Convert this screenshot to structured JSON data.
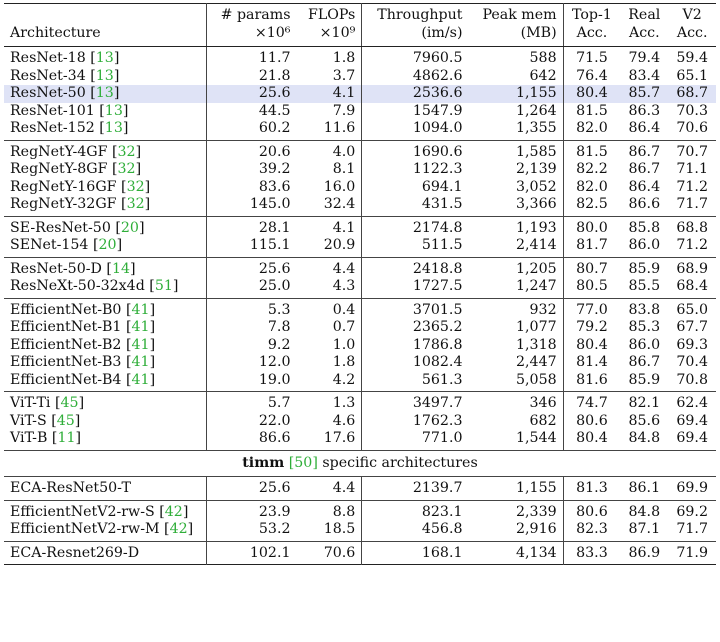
{
  "header": {
    "architecture": "Architecture",
    "params_l1": "# params",
    "params_l2": "×10⁶",
    "flops_l1": "FLOPs",
    "flops_l2": "×10⁹",
    "throughput_l1": "Throughput",
    "throughput_l2": "(im/s)",
    "peakmem_l1": "Peak mem",
    "peakmem_l2": "(MB)",
    "top1_l1": "Top-1",
    "top1_l2": "Acc.",
    "real_l1": "Real",
    "real_l2": "Acc.",
    "v2_l1": "V2",
    "v2_l2": "Acc."
  },
  "caption_row": {
    "bold": "timm",
    "ref": "[50]",
    "rest": " specific architectures"
  },
  "groups": [
    {
      "rows": [
        {
          "name": "ResNet-18",
          "ref": "13",
          "params": "11.7",
          "flops": "1.8",
          "throughput": "7960.5",
          "mem": "588",
          "top1": "71.5",
          "real": "79.4",
          "v2": "59.4"
        },
        {
          "name": "ResNet-34",
          "ref": "13",
          "params": "21.8",
          "flops": "3.7",
          "throughput": "4862.6",
          "mem": "642",
          "top1": "76.4",
          "real": "83.4",
          "v2": "65.1"
        },
        {
          "name": "ResNet-50",
          "ref": "13",
          "params": "25.6",
          "flops": "4.1",
          "throughput": "2536.6",
          "mem": "1,155",
          "top1": "80.4",
          "real": "85.7",
          "v2": "68.7",
          "highlight": true
        },
        {
          "name": "ResNet-101",
          "ref": "13",
          "params": "44.5",
          "flops": "7.9",
          "throughput": "1547.9",
          "mem": "1,264",
          "top1": "81.5",
          "real": "86.3",
          "v2": "70.3"
        },
        {
          "name": "ResNet-152",
          "ref": "13",
          "params": "60.2",
          "flops": "11.6",
          "throughput": "1094.0",
          "mem": "1,355",
          "top1": "82.0",
          "real": "86.4",
          "v2": "70.6"
        }
      ]
    },
    {
      "rows": [
        {
          "name": "RegNetY-4GF",
          "ref": "32",
          "params": "20.6",
          "flops": "4.0",
          "throughput": "1690.6",
          "mem": "1,585",
          "top1": "81.5",
          "real": "86.7",
          "v2": "70.7"
        },
        {
          "name": "RegNetY-8GF",
          "ref": "32",
          "params": "39.2",
          "flops": "8.1",
          "throughput": "1122.3",
          "mem": "2,139",
          "top1": "82.2",
          "real": "86.7",
          "v2": "71.1"
        },
        {
          "name": "RegNetY-16GF",
          "ref": "32",
          "params": "83.6",
          "flops": "16.0",
          "throughput": "694.1",
          "mem": "3,052",
          "top1": "82.0",
          "real": "86.4",
          "v2": "71.2"
        },
        {
          "name": "RegNetY-32GF",
          "ref": "32",
          "params": "145.0",
          "flops": "32.4",
          "throughput": "431.5",
          "mem": "3,366",
          "top1": "82.5",
          "real": "86.6",
          "v2": "71.7"
        }
      ]
    },
    {
      "rows": [
        {
          "name": "SE-ResNet-50",
          "ref": "20",
          "params": "28.1",
          "flops": "4.1",
          "throughput": "2174.8",
          "mem": "1,193",
          "top1": "80.0",
          "real": "85.8",
          "v2": "68.8"
        },
        {
          "name": "SENet-154",
          "ref": "20",
          "params": "115.1",
          "flops": "20.9",
          "throughput": "511.5",
          "mem": "2,414",
          "top1": "81.7",
          "real": "86.0",
          "v2": "71.2"
        }
      ]
    },
    {
      "rows": [
        {
          "name": "ResNet-50-D",
          "ref": "14",
          "params": "25.6",
          "flops": "4.4",
          "throughput": "2418.8",
          "mem": "1,205",
          "top1": "80.7",
          "real": "85.9",
          "v2": "68.9"
        },
        {
          "name": "ResNeXt-50-32x4d",
          "ref": "51",
          "params": "25.0",
          "flops": "4.3",
          "throughput": "1727.5",
          "mem": "1,247",
          "top1": "80.5",
          "real": "85.5",
          "v2": "68.4"
        }
      ]
    },
    {
      "rows": [
        {
          "name": "EfficientNet-B0",
          "ref": "41",
          "params": "5.3",
          "flops": "0.4",
          "throughput": "3701.5",
          "mem": "932",
          "top1": "77.0",
          "real": "83.8",
          "v2": "65.0"
        },
        {
          "name": "EfficientNet-B1",
          "ref": "41",
          "params": "7.8",
          "flops": "0.7",
          "throughput": "2365.2",
          "mem": "1,077",
          "top1": "79.2",
          "real": "85.3",
          "v2": "67.7"
        },
        {
          "name": "EfficientNet-B2",
          "ref": "41",
          "params": "9.2",
          "flops": "1.0",
          "throughput": "1786.8",
          "mem": "1,318",
          "top1": "80.4",
          "real": "86.0",
          "v2": "69.3"
        },
        {
          "name": "EfficientNet-B3",
          "ref": "41",
          "params": "12.0",
          "flops": "1.8",
          "throughput": "1082.4",
          "mem": "2,447",
          "top1": "81.4",
          "real": "86.7",
          "v2": "70.4"
        },
        {
          "name": "EfficientNet-B4",
          "ref": "41",
          "params": "19.0",
          "flops": "4.2",
          "throughput": "561.3",
          "mem": "5,058",
          "top1": "81.6",
          "real": "85.9",
          "v2": "70.8"
        }
      ]
    },
    {
      "rows": [
        {
          "name": "ViT-Ti",
          "ref": "45",
          "params": "5.7",
          "flops": "1.3",
          "throughput": "3497.7",
          "mem": "346",
          "top1": "74.7",
          "real": "82.1",
          "v2": "62.4"
        },
        {
          "name": "ViT-S",
          "ref": "45",
          "params": "22.0",
          "flops": "4.6",
          "throughput": "1762.3",
          "mem": "682",
          "top1": "80.6",
          "real": "85.6",
          "v2": "69.4"
        },
        {
          "name": "ViT-B",
          "ref": "11",
          "params": "86.6",
          "flops": "17.6",
          "throughput": "771.0",
          "mem": "1,544",
          "top1": "80.4",
          "real": "84.8",
          "v2": "69.4"
        }
      ]
    }
  ],
  "timm_groups": [
    {
      "rows": [
        {
          "name": "ECA-ResNet50-T",
          "ref": "",
          "params": "25.6",
          "flops": "4.4",
          "throughput": "2139.7",
          "mem": "1,155",
          "top1": "81.3",
          "real": "86.1",
          "v2": "69.9"
        }
      ]
    },
    {
      "rows": [
        {
          "name": "EfficientNetV2-rw-S",
          "ref": "42",
          "params": "23.9",
          "flops": "8.8",
          "throughput": "823.1",
          "mem": "2,339",
          "top1": "80.6",
          "real": "84.8",
          "v2": "69.2"
        },
        {
          "name": "EfficientNetV2-rw-M",
          "ref": "42",
          "params": "53.2",
          "flops": "18.5",
          "throughput": "456.8",
          "mem": "2,916",
          "top1": "82.3",
          "real": "87.1",
          "v2": "71.7"
        }
      ]
    },
    {
      "rows": [
        {
          "name": "ECA-Resnet269-D",
          "ref": "",
          "params": "102.1",
          "flops": "70.6",
          "throughput": "168.1",
          "mem": "4,134",
          "top1": "83.3",
          "real": "86.9",
          "v2": "71.9"
        }
      ]
    }
  ],
  "colors": {
    "reference": "#2fae39",
    "highlight": "#dfe3f6",
    "rule": "#444444"
  }
}
